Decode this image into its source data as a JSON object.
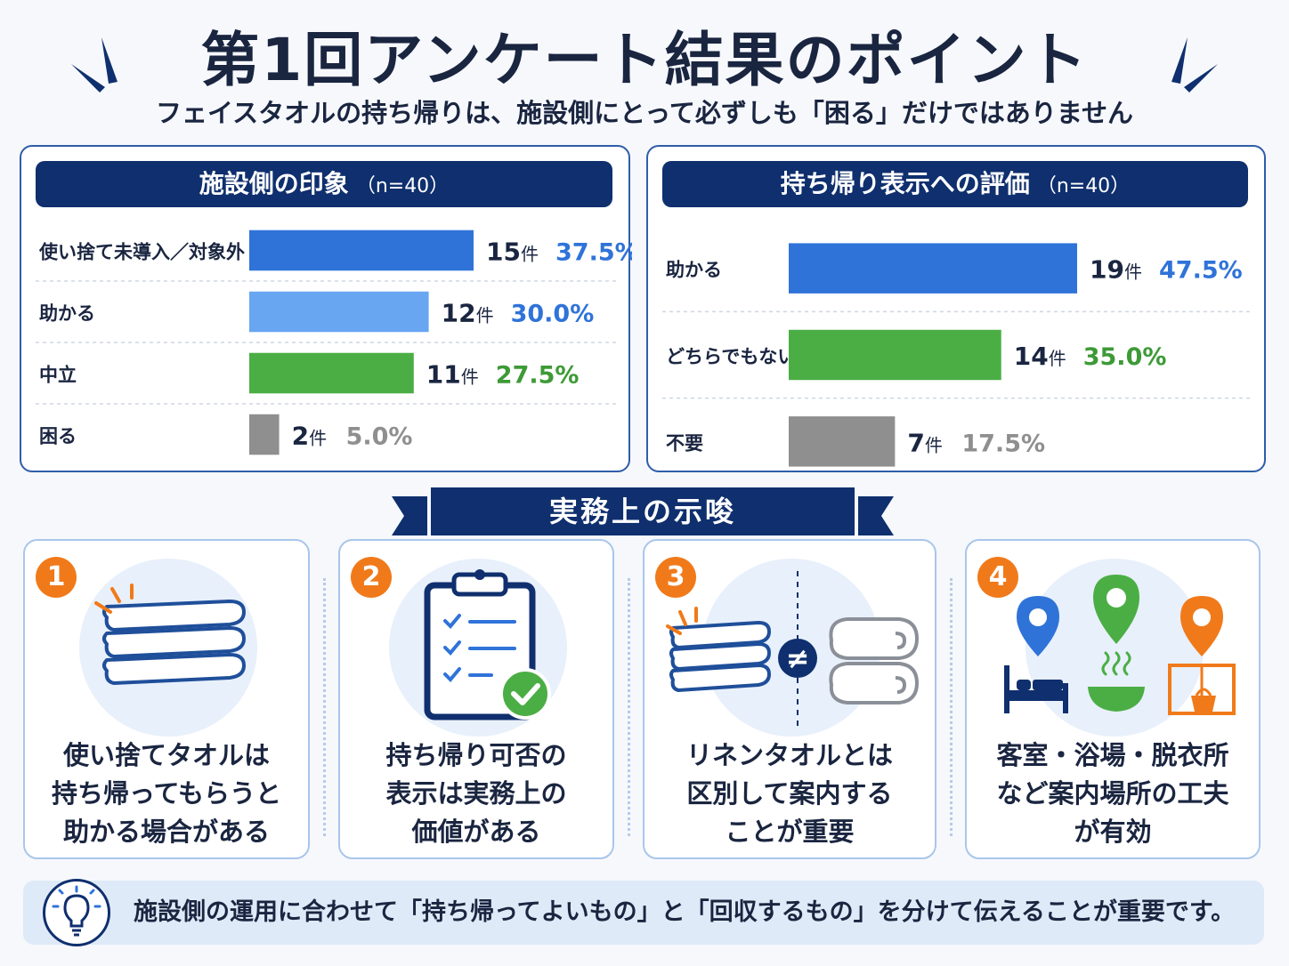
{
  "header": {
    "title": "第1回アンケート結果のポイント",
    "subtitle": "フェイスタオルの持ち帰りは、施設側にとって必ずしも「困る」だけではありません"
  },
  "chart_data": [
    {
      "type": "bar",
      "orientation": "horizontal",
      "title": "施設側の印象",
      "n_label": "（n=40）",
      "count_unit": "件",
      "categories": [
        "使い捨て未導入／対象外",
        "助かる",
        "中立",
        "困る"
      ],
      "counts": [
        15,
        12,
        11,
        2
      ],
      "percent_labels": [
        "37.5%",
        "30.0%",
        "27.5%",
        "5.0%"
      ],
      "colors": [
        "#2f73d9",
        "#68a6f2",
        "#4bae45",
        "#8f8f8f"
      ],
      "value_colors": [
        "#2f73d9",
        "#2f73d9",
        "#3d9a36",
        "#8f8f8f"
      ],
      "xlim": [
        0,
        15
      ]
    },
    {
      "type": "bar",
      "orientation": "horizontal",
      "title": "持ち帰り表示への評価",
      "n_label": "（n=40）",
      "count_unit": "件",
      "categories": [
        "助かる",
        "どちらでもない",
        "不要"
      ],
      "counts": [
        19,
        14,
        7
      ],
      "percent_labels": [
        "47.5%",
        "35.0%",
        "17.5%"
      ],
      "colors": [
        "#2f73d9",
        "#4bae45",
        "#8f8f8f"
      ],
      "value_colors": [
        "#2f73d9",
        "#3d9a36",
        "#8f8f8f"
      ],
      "xlim": [
        0,
        19
      ]
    }
  ],
  "implications": {
    "heading": "実務上の示唆",
    "cards": [
      {
        "number": "1",
        "lines": [
          "使い捨てタオルは",
          "持ち帰ってもらうと",
          "助かる場合がある"
        ],
        "icon": "folded-towels-icon"
      },
      {
        "number": "2",
        "lines": [
          "持ち帰り可否の",
          "表示は実務上の",
          "価値がある"
        ],
        "icon": "clipboard-check-icon"
      },
      {
        "number": "3",
        "lines": [
          "リネンタオルとは",
          "区別して案内する",
          "ことが重要"
        ],
        "icon": "towel-not-equal-icon",
        "symbol": "≠"
      },
      {
        "number": "4",
        "lines": [
          "客室・浴場・脱衣所",
          "など案内場所の工夫",
          "が有効"
        ],
        "icon": "location-pins-icon"
      }
    ]
  },
  "footer": {
    "text": "施設側の運用に合わせて「持ち帰ってよいもの」と「回収するもの」を分けて伝えることが重要です。",
    "icon": "lightbulb-icon"
  },
  "colors": {
    "navy": "#0f2f6e",
    "blue": "#2f73d9",
    "green": "#4bae45",
    "gray": "#8f8f8f",
    "orange": "#f07a1a"
  }
}
